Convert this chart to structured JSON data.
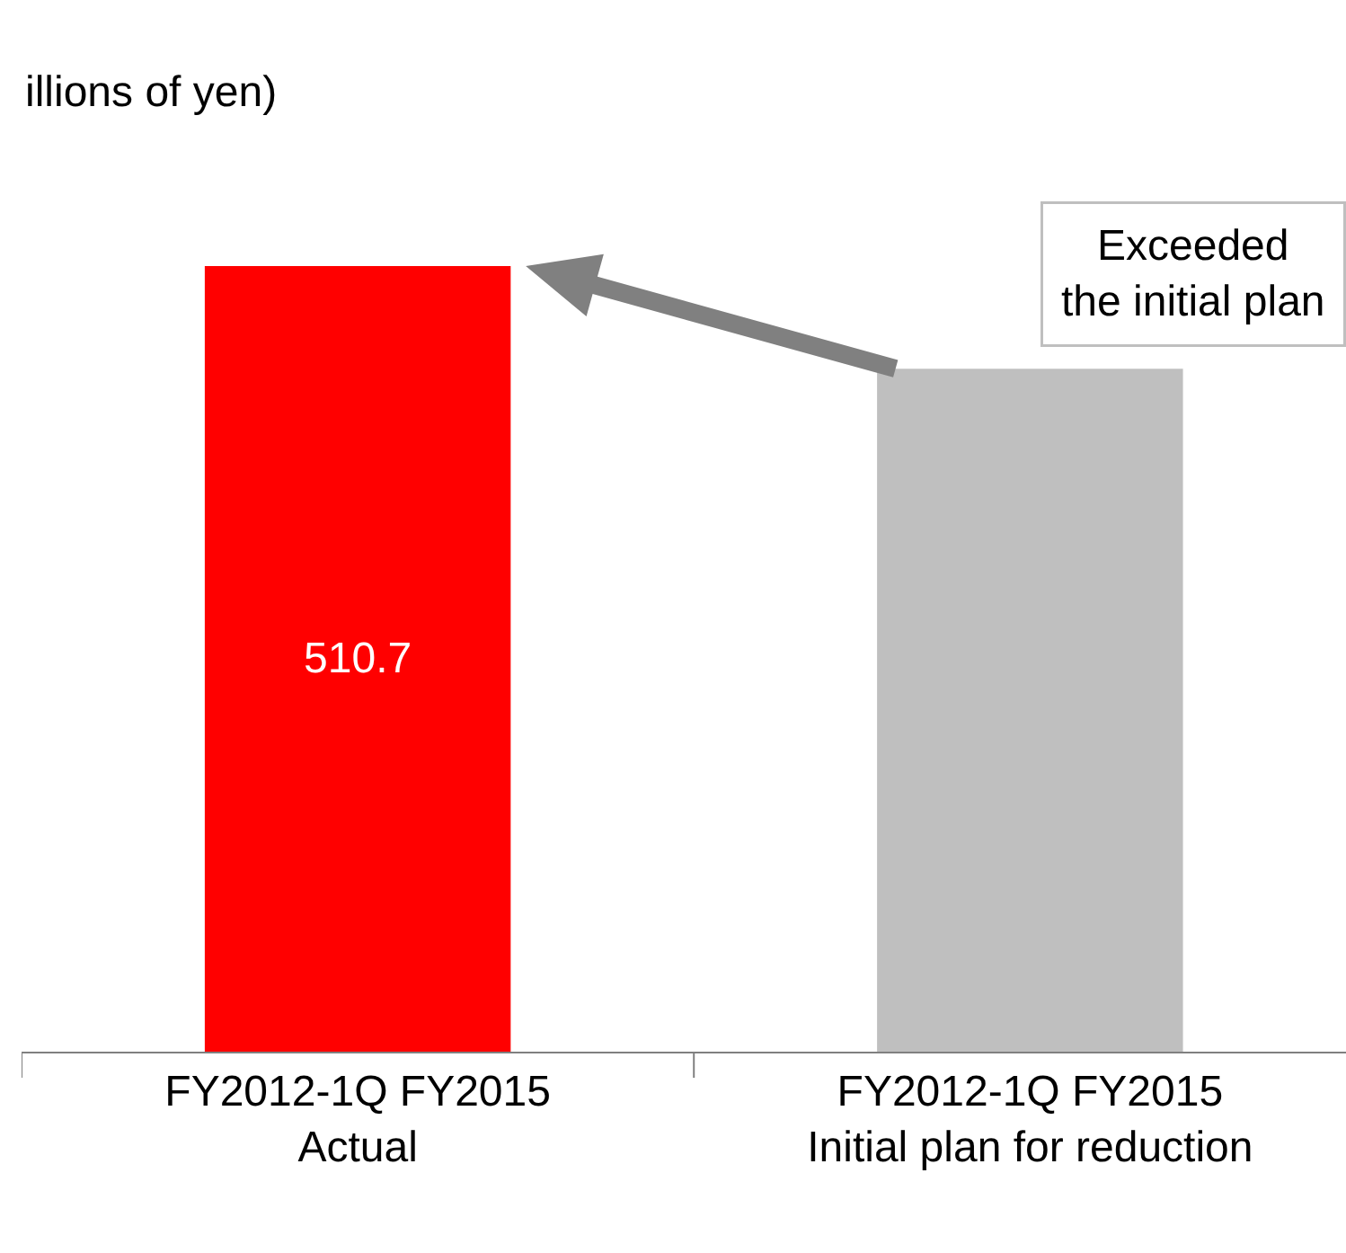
{
  "chart_data": {
    "type": "bar",
    "ylabel": "illions of yen)",
    "categories": [
      "FY2012-1Q FY2015\nActual",
      "FY2012-1Q FY2015\nInitial plan for reduction"
    ],
    "values": [
      510.7,
      444
    ],
    "colors": [
      "#ff0000",
      "#bfbfbf"
    ],
    "value_labels": [
      "510.7",
      null
    ],
    "annotations": [
      "Exceeded\nthe initial plan"
    ]
  }
}
